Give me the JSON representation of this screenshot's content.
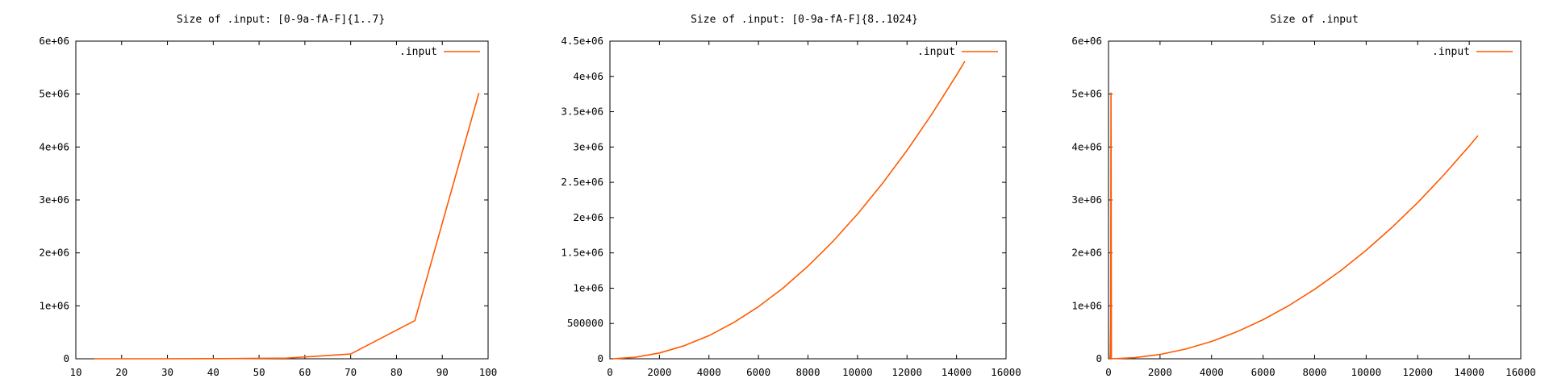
{
  "colors": {
    "series": "#ff5a00",
    "axis": "#000000",
    "background": "#ffffff"
  },
  "chart_data": [
    {
      "type": "line",
      "title": "Size of .input: [0-9a-fA-F]{1..7}",
      "xlabel": "",
      "ylabel": "",
      "xlim": [
        10,
        100
      ],
      "ylim": [
        0,
        6000000
      ],
      "xticks": [
        10,
        20,
        30,
        40,
        50,
        60,
        70,
        80,
        90,
        100
      ],
      "yticks": [
        0,
        1000000,
        2000000,
        3000000,
        4000000,
        5000000,
        6000000
      ],
      "xtick_labels": [
        "10",
        "20",
        "30",
        "40",
        "50",
        "60",
        "70",
        "80",
        "90",
        "100"
      ],
      "ytick_labels": [
        "0",
        "1e+06",
        "2e+06",
        "3e+06",
        "4e+06",
        "5e+06",
        "6e+06"
      ],
      "grid": false,
      "legend_position": "top-right",
      "series": [
        {
          "name": ".input",
          "x": [
            14,
            28,
            42,
            56,
            70,
            84,
            98
          ],
          "y": [
            0,
            400,
            2500,
            12000,
            90000,
            720000,
            5020000
          ]
        }
      ]
    },
    {
      "type": "line",
      "title": "Size of .input: [0-9a-fA-F]{8..1024}",
      "xlabel": "",
      "ylabel": "",
      "xlim": [
        0,
        16000
      ],
      "ylim": [
        0,
        4500000
      ],
      "xticks": [
        0,
        2000,
        4000,
        6000,
        8000,
        10000,
        12000,
        14000,
        16000
      ],
      "yticks": [
        0,
        500000,
        1000000,
        1500000,
        2000000,
        2500000,
        3000000,
        3500000,
        4000000,
        4500000
      ],
      "xtick_labels": [
        "0",
        "2000",
        "4000",
        "6000",
        "8000",
        "10000",
        "12000",
        "14000",
        "16000"
      ],
      "ytick_labels": [
        "0",
        "500000",
        "1e+06",
        "1.5e+06",
        "2e+06",
        "2.5e+06",
        "3e+06",
        "3.5e+06",
        "4e+06",
        "4.5e+06"
      ],
      "grid": false,
      "legend_position": "top-right",
      "series": [
        {
          "name": ".input",
          "x": [
            112,
            1000,
            2000,
            3000,
            4000,
            5000,
            6000,
            7000,
            8000,
            9000,
            10000,
            11000,
            12000,
            13000,
            14000,
            14336
          ],
          "y": [
            260,
            20500,
            82000,
            184500,
            328000,
            512500,
            738000,
            1004500,
            1312000,
            1660500,
            2050000,
            2480500,
            2952000,
            3464500,
            4018000,
            4215000
          ]
        }
      ]
    },
    {
      "type": "line",
      "title": "Size of .input",
      "xlabel": "",
      "ylabel": "",
      "xlim": [
        0,
        16000
      ],
      "ylim": [
        0,
        6000000
      ],
      "xticks": [
        0,
        2000,
        4000,
        6000,
        8000,
        10000,
        12000,
        14000,
        16000
      ],
      "yticks": [
        0,
        1000000,
        2000000,
        3000000,
        4000000,
        5000000,
        6000000
      ],
      "xtick_labels": [
        "0",
        "2000",
        "4000",
        "6000",
        "8000",
        "10000",
        "12000",
        "14000",
        "16000"
      ],
      "ytick_labels": [
        "0",
        "1e+06",
        "2e+06",
        "3e+06",
        "4e+06",
        "5e+06",
        "6e+06"
      ],
      "grid": false,
      "legend_position": "top-right",
      "series": [
        {
          "name": ".input",
          "x": [
            14,
            28,
            42,
            56,
            70,
            84,
            98,
            112,
            1000,
            2000,
            3000,
            4000,
            5000,
            6000,
            7000,
            8000,
            9000,
            10000,
            11000,
            12000,
            13000,
            14000,
            14336
          ],
          "y": [
            0,
            400,
            2500,
            12000,
            90000,
            720000,
            5020000,
            260,
            20500,
            82000,
            184500,
            328000,
            512500,
            738000,
            1004500,
            1312000,
            1660500,
            2050000,
            2480500,
            2952000,
            3464500,
            4018000,
            4215000
          ]
        }
      ]
    }
  ]
}
